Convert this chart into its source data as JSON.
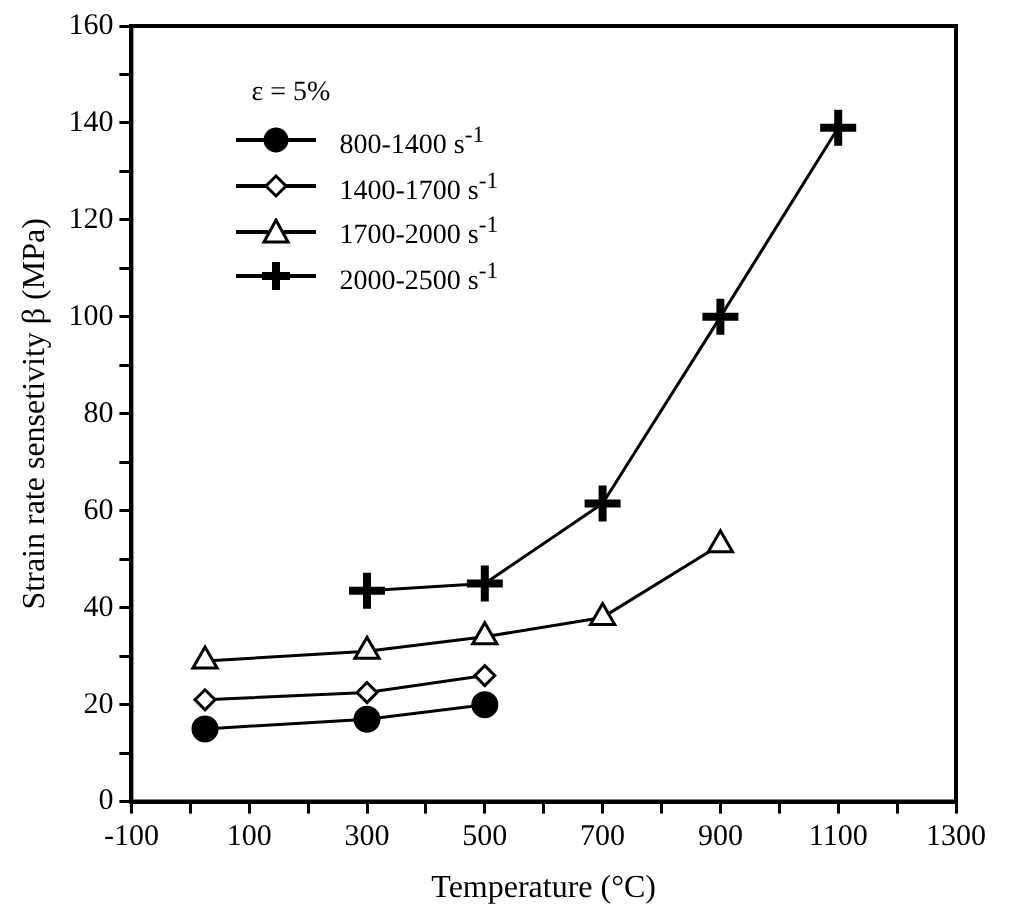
{
  "chart_data": {
    "type": "line",
    "xlabel": "Temperature (°C)",
    "ylabel": "Strain rate sensetivity β (MPa)",
    "legend_title": "ε = 5%",
    "legend": "top left",
    "grid": false,
    "line_style": "solid",
    "xlim": [
      -100,
      1300
    ],
    "xticks": [
      -100,
      {
        "value": 0,
        "label": null
      },
      100,
      {
        "value": 200,
        "label": null
      },
      300,
      {
        "value": 400,
        "label": null
      },
      500,
      {
        "value": 600,
        "label": null
      },
      700,
      {
        "value": 800,
        "label": null
      },
      900,
      {
        "value": 1000,
        "label": null
      },
      1100,
      {
        "value": 1200,
        "label": null
      },
      1300
    ],
    "ylim": [
      0,
      160
    ],
    "yticks": [
      0,
      {
        "value": 10,
        "label": null
      },
      20,
      {
        "value": 30,
        "label": null
      },
      40,
      {
        "value": 50,
        "label": null
      },
      60,
      {
        "value": 70,
        "label": null
      },
      80,
      {
        "value": 90,
        "label": null
      },
      100,
      {
        "value": 110,
        "label": null
      },
      120,
      {
        "value": 130,
        "label": null
      },
      140,
      {
        "value": 150,
        "label": null
      },
      160
    ],
    "series": [
      {
        "name": "800-1400 s$^{-1}$",
        "color": "#000000",
        "marker": "circle",
        "x": [
          25,
          300,
          500
        ],
        "values": [
          15,
          17,
          20
        ]
      },
      {
        "name": "1400-1700 s$^{-1}$",
        "color": "#000000",
        "marker": "diamond",
        "x": [
          25,
          300,
          500
        ],
        "values": [
          21,
          22.5,
          26
        ]
      },
      {
        "name": "1700-2000 s$^{-1}$",
        "color": "#000000",
        "marker": "triangle",
        "x": [
          25,
          300,
          500,
          700,
          900
        ],
        "values": [
          29,
          31,
          34,
          38,
          53
        ]
      },
      {
        "name": "2000-2500 s$^{-1}$",
        "color": "#000000",
        "marker": "cross",
        "x": [
          300,
          500,
          700,
          900,
          1100
        ],
        "values": [
          43.5,
          45,
          61.5,
          100,
          139
        ]
      }
    ]
  }
}
